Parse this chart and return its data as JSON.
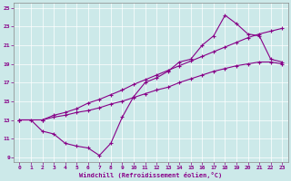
{
  "xlabel": "Windchill (Refroidissement éolien,°C)",
  "xlim_min": -0.5,
  "xlim_max": 23.5,
  "ylim_min": 8.5,
  "ylim_max": 25.5,
  "xticks": [
    0,
    1,
    2,
    3,
    4,
    5,
    6,
    7,
    8,
    9,
    10,
    11,
    12,
    13,
    14,
    15,
    16,
    17,
    18,
    19,
    20,
    21,
    22,
    23
  ],
  "yticks": [
    9,
    11,
    13,
    15,
    17,
    19,
    21,
    23,
    25
  ],
  "background_color": "#cce9e9",
  "line_color": "#880088",
  "line1_x": [
    0,
    1,
    2,
    3,
    4,
    5,
    6,
    7,
    8,
    9,
    10,
    11,
    12,
    13,
    14,
    15,
    16,
    17,
    18,
    19,
    20,
    21,
    22,
    23
  ],
  "line1_y": [
    13,
    13,
    11.8,
    11.5,
    10.5,
    10.2,
    10.0,
    9.2,
    10.5,
    13.3,
    15.5,
    17.0,
    17.5,
    18.2,
    19.2,
    19.5,
    21.0,
    22.0,
    24.2,
    23.3,
    22.2,
    22.0,
    19.5,
    19.2
  ],
  "line2_x": [
    0,
    2,
    3,
    4,
    5,
    6,
    7,
    8,
    9,
    10,
    11,
    12,
    13,
    14,
    15,
    16,
    17,
    18,
    19,
    20,
    21,
    22,
    23
  ],
  "line2_y": [
    13,
    13,
    13.3,
    13.5,
    13.8,
    14.0,
    14.3,
    14.7,
    15.0,
    15.4,
    15.8,
    16.2,
    16.5,
    17.0,
    17.4,
    17.8,
    18.2,
    18.5,
    18.8,
    19.0,
    19.2,
    19.2,
    19.0
  ],
  "line3_x": [
    0,
    2,
    3,
    4,
    5,
    6,
    7,
    8,
    9,
    10,
    11,
    12,
    13,
    14,
    15,
    16,
    17,
    18,
    19,
    20,
    21,
    22,
    23
  ],
  "line3_y": [
    13,
    13,
    13.5,
    13.8,
    14.2,
    14.8,
    15.2,
    15.7,
    16.2,
    16.8,
    17.3,
    17.8,
    18.3,
    18.8,
    19.3,
    19.8,
    20.3,
    20.8,
    21.3,
    21.8,
    22.2,
    22.5,
    22.8
  ]
}
